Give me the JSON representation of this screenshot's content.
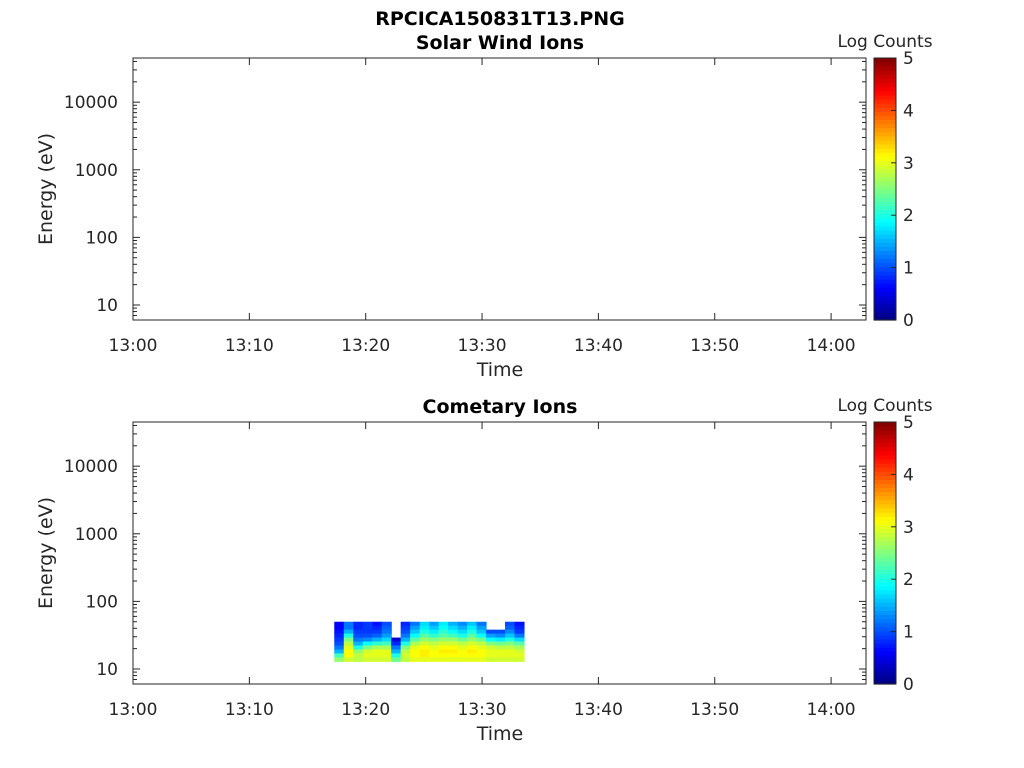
{
  "figure": {
    "title": "RPCICA150831T13.PNG"
  },
  "colors": {
    "axis": "#262626",
    "background": "#ffffff",
    "colormap": "jet"
  },
  "chart_data": [
    {
      "type": "heatmap",
      "title": "Solar Wind Ions",
      "xlabel": "Time",
      "ylabel": "Energy (eV)",
      "x_ticks": [
        "13:00",
        "13:10",
        "13:20",
        "13:30",
        "13:40",
        "13:50",
        "14:00"
      ],
      "y_ticks": [
        "10",
        "100",
        "1000",
        "10000"
      ],
      "y_scale": "log",
      "xlim_minutes": [
        0,
        63
      ],
      "ylim": [
        6,
        45000
      ],
      "colorbar": {
        "label": "Log Counts",
        "ticks": [
          "0",
          "1",
          "2",
          "3",
          "4",
          "5"
        ],
        "range": [
          0,
          5
        ]
      },
      "grid": false,
      "data": []
    },
    {
      "type": "heatmap",
      "title": "Cometary Ions",
      "xlabel": "Time",
      "ylabel": "Energy (eV)",
      "x_ticks": [
        "13:00",
        "13:10",
        "13:20",
        "13:30",
        "13:40",
        "13:50",
        "14:00"
      ],
      "y_ticks": [
        "10",
        "100",
        "1000",
        "10000"
      ],
      "y_scale": "log",
      "xlim_minutes": [
        0,
        63
      ],
      "ylim": [
        6,
        45000
      ],
      "colorbar": {
        "label": "Log Counts",
        "ticks": [
          "0",
          "1",
          "2",
          "3",
          "4",
          "5"
        ],
        "range": [
          0,
          5
        ]
      },
      "grid": false,
      "data": {
        "time_range_minutes": [
          17.3,
          33.6
        ],
        "energy_range_eV": [
          13,
          50
        ],
        "energy_rows_eV": [
          49,
          43,
          38,
          33,
          29,
          25,
          22,
          19,
          16.5,
          14.5
        ],
        "time_columns_minutes": [
          17.6,
          18.4,
          19.2,
          20.0,
          20.8,
          21.6,
          22.4,
          23.2,
          24.0,
          24.8,
          25.6,
          26.4,
          27.2,
          28.0,
          28.8,
          29.6,
          30.4,
          31.2,
          32.0,
          32.8
        ],
        "log_counts": [
          [
            0.6,
            1.2,
            0.8,
            0.9,
            0.7,
            1.0,
            -1,
            0.8,
            1.2,
            1.7,
            1.4,
            1.8,
            1.5,
            1.3,
            1.6,
            1.2,
            -1,
            -1,
            1.0,
            0.7
          ],
          [
            0.6,
            1.2,
            0.8,
            0.9,
            0.8,
            1.1,
            -1,
            0.9,
            1.4,
            1.8,
            1.6,
            1.9,
            1.7,
            1.5,
            1.8,
            1.4,
            -1,
            -1,
            1.1,
            0.8
          ],
          [
            0.7,
            1.5,
            0.9,
            0.9,
            0.9,
            1.2,
            -1,
            1.0,
            1.6,
            2.0,
            1.8,
            2.1,
            1.9,
            1.7,
            2.0,
            1.6,
            1.0,
            1.0,
            1.3,
            0.9
          ],
          [
            0.8,
            2.0,
            1.0,
            1.0,
            1.1,
            1.4,
            -1,
            1.2,
            1.9,
            2.3,
            2.1,
            2.3,
            2.2,
            2.0,
            2.3,
            1.9,
            1.4,
            1.3,
            1.6,
            1.2
          ],
          [
            0.9,
            2.5,
            1.2,
            1.3,
            1.5,
            1.7,
            0.4,
            1.5,
            2.3,
            2.6,
            2.5,
            2.6,
            2.6,
            2.4,
            2.6,
            2.4,
            1.9,
            1.8,
            2.0,
            1.7
          ],
          [
            1.0,
            2.8,
            1.5,
            1.9,
            2.1,
            2.2,
            0.8,
            2.0,
            2.7,
            2.9,
            2.8,
            2.9,
            2.9,
            2.8,
            2.9,
            2.8,
            2.5,
            2.4,
            2.5,
            2.3
          ],
          [
            1.2,
            3.0,
            2.0,
            2.5,
            2.7,
            2.7,
            1.2,
            2.5,
            3.0,
            3.1,
            3.0,
            3.1,
            3.1,
            3.0,
            3.1,
            3.0,
            2.9,
            2.8,
            2.8,
            2.7
          ],
          [
            1.5,
            3.1,
            2.6,
            2.9,
            3.0,
            3.0,
            1.5,
            2.8,
            3.1,
            3.2,
            3.1,
            3.2,
            3.2,
            3.1,
            3.2,
            3.1,
            3.0,
            3.0,
            3.0,
            2.9
          ],
          [
            2.2,
            3.1,
            2.8,
            3.0,
            3.0,
            3.0,
            2.0,
            2.9,
            3.1,
            3.2,
            3.1,
            3.1,
            3.1,
            3.1,
            3.1,
            3.1,
            3.0,
            3.0,
            3.0,
            3.0
          ],
          [
            2.6,
            2.9,
            2.8,
            2.9,
            2.9,
            2.9,
            2.4,
            2.8,
            3.0,
            3.0,
            3.0,
            3.0,
            3.0,
            3.0,
            3.0,
            3.0,
            2.9,
            2.9,
            2.9,
            2.9
          ]
        ]
      }
    }
  ]
}
